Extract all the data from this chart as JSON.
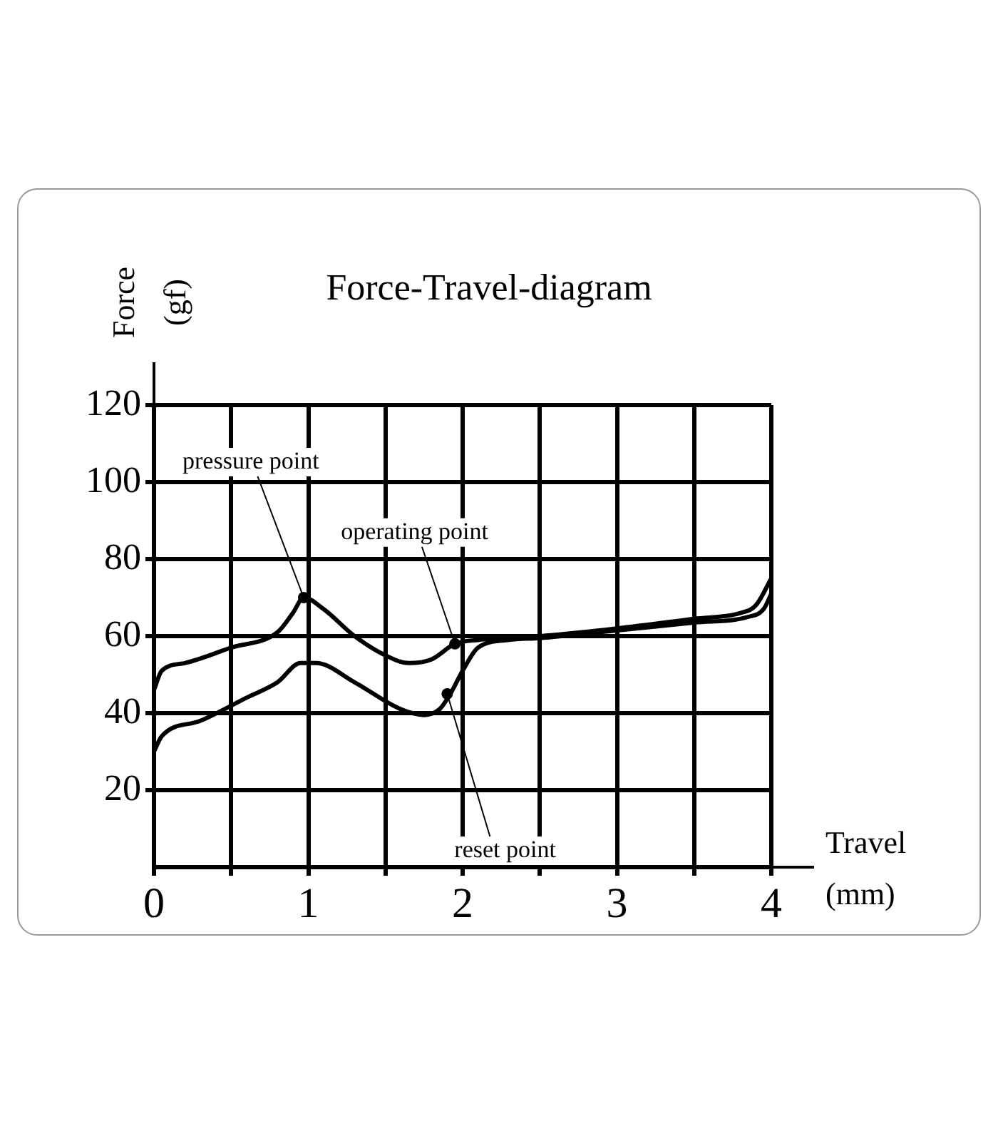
{
  "chart_data": {
    "type": "line",
    "title": "Force-Travel-diagram",
    "xlabel": "Travel (mm)",
    "ylabel": "Force (gf)",
    "xlim": [
      0,
      4
    ],
    "xticks": [
      0,
      {
        "value": 0.5,
        "label": null
      },
      1,
      {
        "value": 1.5,
        "label": null
      },
      2,
      {
        "value": 2.5,
        "label": null
      },
      3,
      {
        "value": 3.5,
        "label": null
      },
      4
    ],
    "ylim": [
      0,
      120
    ],
    "yticks": [
      20,
      40,
      60,
      80,
      100,
      120
    ],
    "grid": true,
    "legend": false,
    "marker": "none",
    "line_style": "solid",
    "series": [
      {
        "color": "#000000",
        "x": [
          0,
          0.05,
          0.2,
          0.5,
          0.8,
          0.9,
          0.97,
          1.1,
          1.3,
          1.5,
          1.65,
          1.8,
          1.95,
          2.1,
          2.5,
          3,
          3.5,
          3.8,
          3.9,
          4
        ],
        "values": [
          46,
          51,
          53,
          57,
          61,
          66,
          70,
          67,
          60,
          55,
          53,
          54,
          58,
          59,
          60,
          62,
          64.5,
          66,
          68,
          75
        ]
      },
      {
        "color": "#000000",
        "x": [
          0,
          0.05,
          0.3,
          0.6,
          0.8,
          0.95,
          1.05,
          1.3,
          1.6,
          1.75,
          1.85,
          1.92,
          2,
          2.1,
          2.3,
          2.5,
          3,
          3.5,
          3.85,
          3.95,
          4
        ],
        "values": [
          30,
          34,
          38,
          44,
          48,
          53,
          53,
          48,
          41,
          39.5,
          41,
          45,
          51,
          57,
          59,
          59.5,
          61.5,
          63.5,
          65,
          67,
          71
        ]
      }
    ],
    "annotations": [
      {
        "text": "pressure point",
        "x": 0.97,
        "y": 70
      },
      {
        "text": "operating point",
        "x": 1.95,
        "y": 58
      },
      {
        "text": "reset point",
        "x": 1.9,
        "y": 45
      }
    ]
  }
}
